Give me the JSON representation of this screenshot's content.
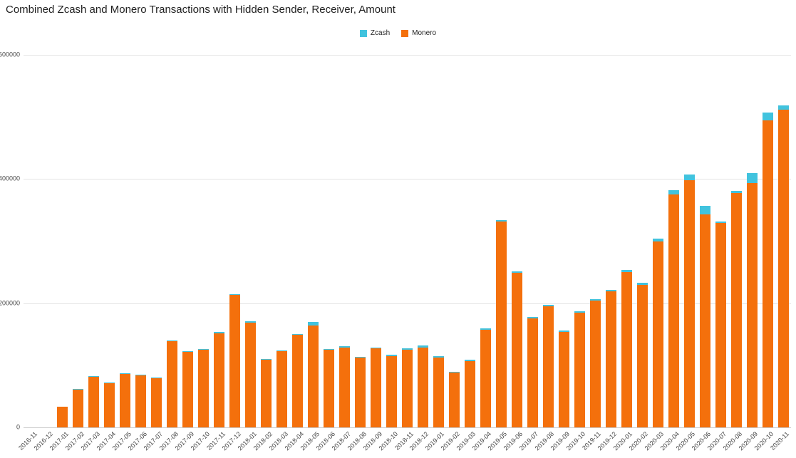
{
  "chart_data": {
    "type": "bar",
    "stacked": true,
    "title": "Combined Zcash and Monero Transactions with Hidden Sender, Receiver, Amount",
    "xlabel": "",
    "ylabel": "",
    "ylim": [
      0,
      600000
    ],
    "yticks": [
      0,
      200000,
      400000,
      600000
    ],
    "ytick_labels": [
      "0",
      "200000",
      "400000",
      "600000"
    ],
    "grid": true,
    "legend_position": "top-center",
    "categories": [
      "2016-11",
      "2016-12",
      "2017-01",
      "2017-02",
      "2017-03",
      "2017-04",
      "2017-05",
      "2017-06",
      "2017-07",
      "2017-08",
      "2017-09",
      "2017-10",
      "2017-11",
      "2017-12",
      "2018-01",
      "2018-02",
      "2018-03",
      "2018-04",
      "2018-05",
      "2018-06",
      "2018-07",
      "2018-08",
      "2018-09",
      "2018-10",
      "2018-11",
      "2018-12",
      "2019-01",
      "2019-02",
      "2019-03",
      "2019-04",
      "2019-05",
      "2019-06",
      "2019-07",
      "2019-08",
      "2019-09",
      "2019-10",
      "2019-11",
      "2019-12",
      "2020-01",
      "2020-02",
      "2020-03",
      "2020-04",
      "2020-05",
      "2020-06",
      "2020-07",
      "2020-08",
      "2020-09",
      "2020-10",
      "2020-11"
    ],
    "series": [
      {
        "name": "Monero",
        "color": "#f4700c",
        "values": [
          0,
          0,
          33000,
          61000,
          82000,
          71000,
          86000,
          84000,
          79000,
          139000,
          122000,
          125000,
          152000,
          213000,
          169000,
          109000,
          123000,
          149000,
          164000,
          125000,
          129000,
          113000,
          127000,
          115000,
          125000,
          129000,
          112000,
          88000,
          107000,
          157000,
          331000,
          249000,
          176000,
          195000,
          154000,
          185000,
          204000,
          219000,
          250000,
          230000,
          299000,
          375000,
          398000,
          343000,
          329000,
          377000,
          393000,
          495000,
          512000
        ]
      },
      {
        "name": "Zcash",
        "color": "#41c3de",
        "values": [
          0,
          0,
          500,
          1000,
          1000,
          1000,
          1000,
          1000,
          1000,
          1500,
          1000,
          1000,
          1500,
          2000,
          1500,
          1000,
          1000,
          1500,
          6000,
          1500,
          2000,
          1000,
          2000,
          1500,
          2000,
          2500,
          3000,
          1000,
          1500,
          2000,
          3000,
          2500,
          2000,
          2500,
          2000,
          2500,
          2500,
          3000,
          3000,
          3000,
          5000,
          7000,
          9000,
          14000,
          3000,
          4000,
          17000,
          12000,
          7000
        ]
      }
    ]
  },
  "legend": {
    "items": [
      {
        "label": "Zcash",
        "color": "#41c3de"
      },
      {
        "label": "Monero",
        "color": "#f4700c"
      }
    ]
  }
}
